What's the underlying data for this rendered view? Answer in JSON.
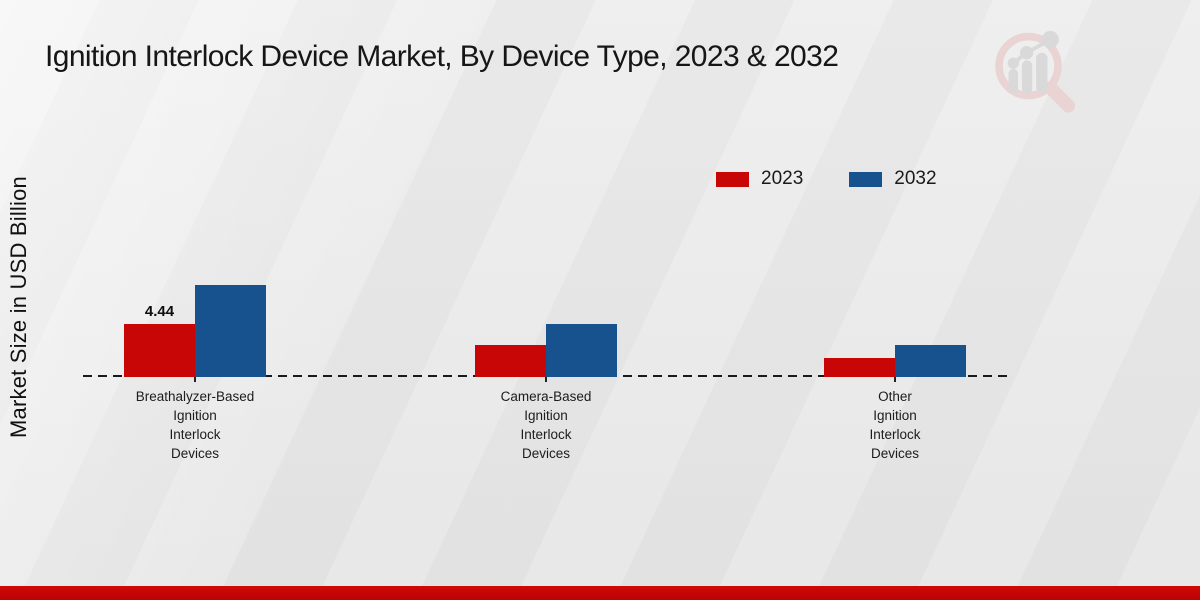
{
  "page": {
    "title": "Ignition Interlock Device Market, By Device Type, 2023 & 2032"
  },
  "colors": {
    "series_2023": "#c90606",
    "series_2032": "#17518e",
    "footer_band": "#c00505",
    "baseline": "#1a1a1a",
    "background": "#e9e9e9"
  },
  "logo": {
    "icon": "magnifier-bar-chart-logo"
  },
  "chart_data": {
    "type": "bar",
    "title": "Ignition Interlock Device Market, By Device Type, 2023 & 2032",
    "ylabel": "Market Size in USD Billion",
    "xlabel": "",
    "categories": [
      [
        "Breathalyzer-Based",
        "Ignition",
        "Interlock",
        "Devices"
      ],
      [
        "Camera-Based",
        "Ignition",
        "Interlock",
        "Devices"
      ],
      [
        "Other",
        "Ignition",
        "Interlock",
        "Devices"
      ]
    ],
    "series": [
      {
        "name": "2023",
        "color": "#c90606",
        "values": [
          4.44,
          2.7,
          1.6
        ]
      },
      {
        "name": "2032",
        "color": "#17518e",
        "values": [
          7.7,
          4.4,
          2.7
        ]
      }
    ],
    "data_labels": [
      {
        "series": 0,
        "category": 0,
        "text": "4.44"
      }
    ],
    "ylim": [
      0,
      8.5
    ],
    "grid": false,
    "baseline_style": "dashed",
    "legend_position": "top-right"
  }
}
